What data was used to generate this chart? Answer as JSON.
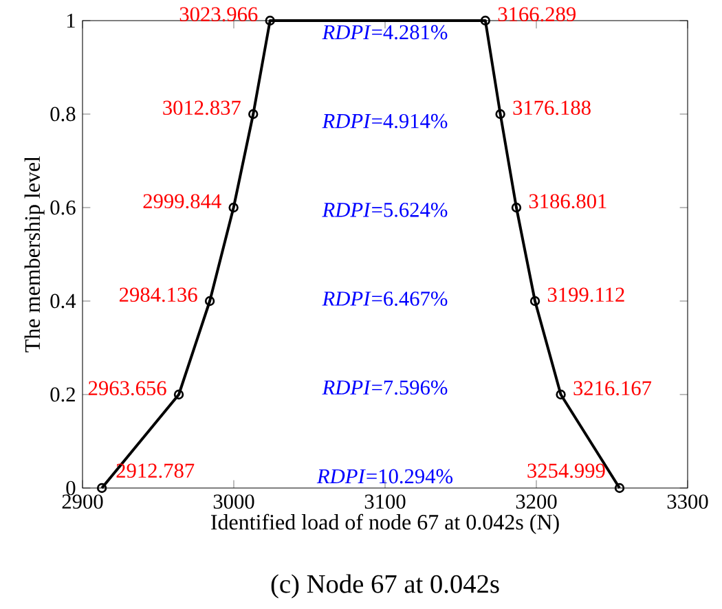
{
  "chart_data": {
    "type": "line",
    "title": "(c) Node 67 at 0.042s",
    "xlabel": "Identified load of node 67 at 0.042s (N)",
    "ylabel": "The membership level",
    "x": [
      2912.787,
      2963.656,
      2984.136,
      2999.844,
      3012.837,
      3023.966,
      3166.289,
      3176.188,
      3186.801,
      3199.112,
      3216.167,
      3254.999
    ],
    "series": [
      {
        "color": "#000000",
        "values": [
          0,
          0.2,
          0.4,
          0.6,
          0.8,
          1,
          1,
          0.8,
          0.6,
          0.4,
          0.2,
          0
        ]
      }
    ],
    "marker": "circle",
    "line_style": "solid",
    "grid": false,
    "xlim": [
      2900,
      3300
    ],
    "xticks": [
      2900,
      3000,
      3100,
      3200,
      3300
    ],
    "ylim": [
      0,
      1
    ],
    "yticks": [
      0,
      0.2,
      0.4,
      0.6,
      0.8,
      1
    ],
    "annotations": [
      {
        "text": "2912.787",
        "x": 2912.787,
        "y": 0
      },
      {
        "text": "2963.656",
        "x": 2963.656,
        "y": 0.2
      },
      {
        "text": "2984.136",
        "x": 2984.136,
        "y": 0.4
      },
      {
        "text": "2999.844",
        "x": 2999.844,
        "y": 0.6
      },
      {
        "text": "3012.837",
        "x": 3012.837,
        "y": 0.8
      },
      {
        "text": "3023.966",
        "x": 3023.966,
        "y": 1
      },
      {
        "text": "3166.289",
        "x": 3166.289,
        "y": 1
      },
      {
        "text": "3176.188",
        "x": 3176.188,
        "y": 0.8
      },
      {
        "text": "3186.801",
        "x": 3186.801,
        "y": 0.6
      },
      {
        "text": "3199.112",
        "x": 3199.112,
        "y": 0.4
      },
      {
        "text": "3216.167",
        "x": 3216.167,
        "y": 0.2
      },
      {
        "text": "3254.999",
        "x": 3254.999,
        "y": 0
      },
      "*RDPI*=4.281%",
      "*RDPI*=4.914%",
      "*RDPI*=5.624%",
      "*RDPI*=6.467%",
      "*RDPI*=7.596%",
      "*RDPI*=10.294%"
    ]
  }
}
